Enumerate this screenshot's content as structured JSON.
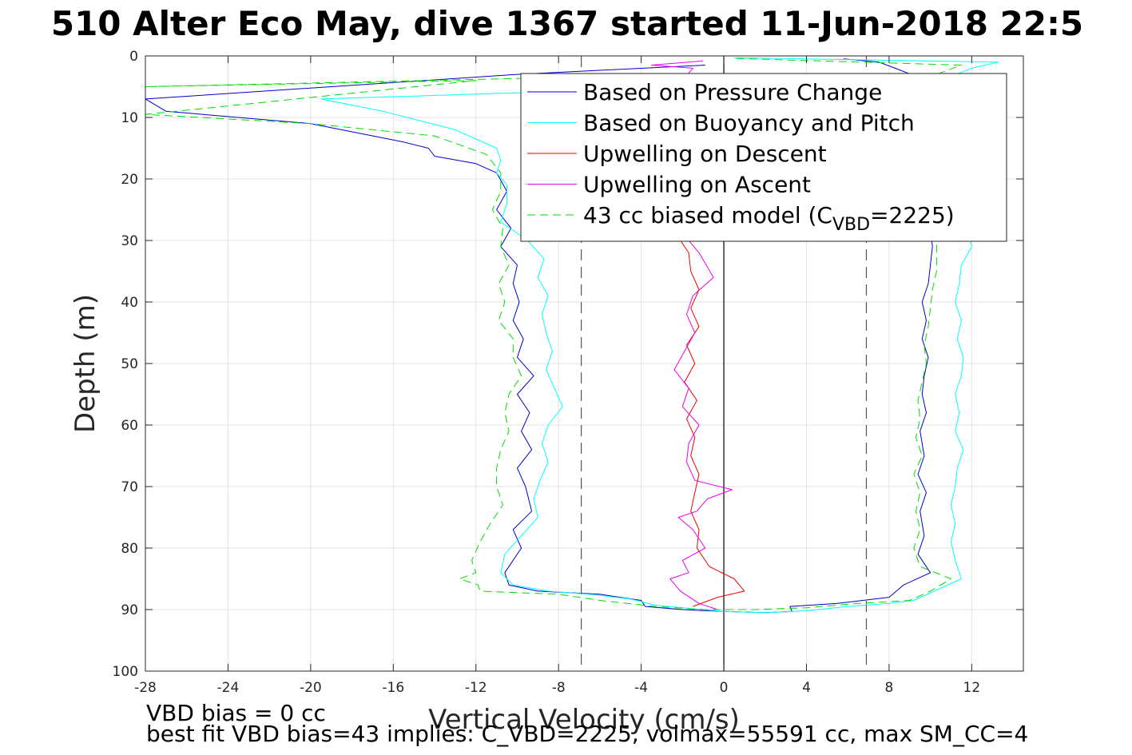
{
  "chart_data": {
    "type": "line",
    "title": "510 Alter Eco May, dive 1367 started 11-Jun-2018 22:5",
    "xlabel": "Vertical Velocity (cm/s)",
    "ylabel": "Depth (m)",
    "xlim": [
      -28,
      14.5
    ],
    "ylim": [
      0,
      100
    ],
    "y_reversed": true,
    "grid": true,
    "legend_position": "top-right",
    "xticks": [
      -28,
      -24,
      -20,
      -16,
      -12,
      -8,
      -4,
      0,
      4,
      8,
      12
    ],
    "yticks": [
      0,
      10,
      20,
      30,
      40,
      50,
      60,
      70,
      80,
      90,
      100
    ],
    "xtick_labels": [
      "-28",
      "-24",
      "-20",
      "-16",
      "-12",
      "-8",
      "-4",
      "0",
      "4",
      "8",
      "12"
    ],
    "ytick_labels": [
      "0",
      "10",
      "20",
      "30",
      "40",
      "50",
      "60",
      "70",
      "80",
      "90",
      "100"
    ],
    "reference_lines": [
      {
        "x": 0,
        "style": "solid",
        "color": "#000000"
      },
      {
        "x": -6.9,
        "style": "dashed",
        "color": "#555555"
      },
      {
        "x": 6.9,
        "style": "dashed",
        "color": "#555555"
      }
    ],
    "series": [
      {
        "name": "Based on Pressure Change",
        "color": "#0000cc",
        "dash": "solid",
        "descent": [
          [
            -0.9,
            1.5
          ],
          [
            -10,
            3
          ],
          [
            -28,
            7
          ],
          [
            -27,
            9
          ],
          [
            -20,
            11
          ],
          [
            -15.5,
            14
          ],
          [
            -14.3,
            15
          ],
          [
            -14,
            16.3
          ],
          [
            -12,
            17.5
          ],
          [
            -11,
            19
          ],
          [
            -10.5,
            22
          ],
          [
            -11,
            25
          ],
          [
            -10.3,
            28
          ],
          [
            -10.8,
            31
          ],
          [
            -10,
            34
          ],
          [
            -10.2,
            37
          ],
          [
            -9.9,
            40
          ],
          [
            -10.2,
            43
          ],
          [
            -9.7,
            46
          ],
          [
            -10,
            49
          ],
          [
            -9.2,
            52
          ],
          [
            -10,
            55
          ],
          [
            -9.4,
            58
          ],
          [
            -9.8,
            61
          ],
          [
            -9.3,
            64
          ],
          [
            -10,
            67
          ],
          [
            -9.6,
            70
          ],
          [
            -9.3,
            74
          ],
          [
            -10.2,
            77
          ],
          [
            -9.8,
            80
          ],
          [
            -10.6,
            84
          ],
          [
            -10.4,
            86
          ],
          [
            -9,
            87
          ],
          [
            -6,
            87.5
          ],
          [
            -4,
            88.5
          ],
          [
            -3.8,
            89.5
          ],
          [
            -2,
            90
          ],
          [
            0,
            90.3
          ],
          [
            2,
            90.5
          ],
          [
            3.3,
            90.3
          ],
          [
            3.2,
            89.5
          ],
          [
            5.5,
            89
          ],
          [
            8,
            88
          ],
          [
            8.7,
            86
          ],
          [
            10,
            84
          ],
          [
            9.4,
            81
          ],
          [
            9.7,
            78
          ],
          [
            9.5,
            74
          ],
          [
            9.8,
            71
          ],
          [
            9.4,
            68
          ],
          [
            9.7,
            65
          ],
          [
            9.5,
            61
          ],
          [
            9.8,
            58
          ],
          [
            9.6,
            55
          ],
          [
            9.7,
            52
          ],
          [
            9.9,
            49
          ],
          [
            9.6,
            46
          ],
          [
            9.8,
            43
          ],
          [
            9.6,
            40
          ],
          [
            9.9,
            37
          ],
          [
            10,
            34
          ],
          [
            10.1,
            31
          ],
          [
            10,
            28
          ],
          [
            10,
            25
          ],
          [
            10,
            22
          ],
          [
            10,
            19
          ],
          [
            10.2,
            16
          ],
          [
            10.3,
            13
          ],
          [
            10.5,
            10
          ],
          [
            10.2,
            7
          ],
          [
            9.8,
            4
          ],
          [
            8.3,
            2
          ],
          [
            7.5,
            1
          ],
          [
            5.8,
            0.5
          ]
        ]
      },
      {
        "name": "Based on Buoyancy and Pitch",
        "color": "#00ffff",
        "dash": "solid",
        "descent": [
          [
            -2,
            5.5
          ],
          [
            -10,
            6
          ],
          [
            -19.5,
            7
          ],
          [
            -16.5,
            9
          ],
          [
            -13,
            12
          ],
          [
            -11,
            15
          ],
          [
            -10.8,
            17
          ],
          [
            -11,
            19
          ],
          [
            -10.5,
            21
          ],
          [
            -10.5,
            24
          ],
          [
            -10.8,
            27
          ],
          [
            -9.5,
            30
          ],
          [
            -8.7,
            33
          ],
          [
            -9,
            36
          ],
          [
            -8.5,
            39
          ],
          [
            -8.8,
            42
          ],
          [
            -8.6,
            45
          ],
          [
            -8.3,
            48
          ],
          [
            -8.6,
            51
          ],
          [
            -8.2,
            54
          ],
          [
            -7.8,
            57
          ],
          [
            -8.5,
            60
          ],
          [
            -8.8,
            63
          ],
          [
            -8.5,
            66
          ],
          [
            -8.9,
            69
          ],
          [
            -9.2,
            72
          ],
          [
            -9,
            75
          ],
          [
            -9.8,
            78
          ],
          [
            -10.6,
            81
          ],
          [
            -10.8,
            84
          ],
          [
            -10.2,
            86
          ],
          [
            -8.5,
            87
          ],
          [
            -6.2,
            87.6
          ],
          [
            -4.5,
            88.3
          ],
          [
            -3.3,
            89.3
          ],
          [
            -1,
            90
          ],
          [
            0,
            90.3
          ],
          [
            2,
            90.5
          ],
          [
            4,
            90.2
          ],
          [
            6,
            89.5
          ],
          [
            8,
            89
          ],
          [
            9.2,
            88.5
          ],
          [
            11.5,
            85
          ],
          [
            11.2,
            82
          ],
          [
            11,
            79
          ],
          [
            11.2,
            76
          ],
          [
            11,
            73
          ],
          [
            11.2,
            70
          ],
          [
            11.3,
            67
          ],
          [
            11.6,
            64
          ],
          [
            11.2,
            61
          ],
          [
            11.4,
            58
          ],
          [
            11.2,
            55
          ],
          [
            11.5,
            52
          ],
          [
            11.6,
            49
          ],
          [
            11.3,
            46
          ],
          [
            11.5,
            43
          ],
          [
            11.2,
            40
          ],
          [
            11.4,
            37
          ],
          [
            11.5,
            34
          ],
          [
            12,
            31
          ],
          [
            11.8,
            28
          ],
          [
            11.5,
            25
          ],
          [
            11.4,
            22
          ],
          [
            11.6,
            19
          ],
          [
            11.5,
            16
          ],
          [
            11.3,
            13
          ],
          [
            11.7,
            10
          ],
          [
            10.8,
            7
          ],
          [
            10.5,
            4
          ],
          [
            12,
            2
          ],
          [
            13.3,
            1
          ],
          [
            0.5,
            0.3
          ]
        ]
      },
      {
        "name": "Upwelling on Descent",
        "color": "#ee0000",
        "dash": "solid",
        "descent": [
          [
            -1.5,
            7
          ],
          [
            -2.8,
            9
          ],
          [
            -2.5,
            11
          ],
          [
            -2.6,
            14
          ],
          [
            -2.2,
            17
          ],
          [
            -2.5,
            20
          ],
          [
            -2.3,
            23
          ],
          [
            -2,
            26
          ],
          [
            -2.3,
            29
          ],
          [
            -1.7,
            32
          ],
          [
            -1.6,
            35
          ],
          [
            -1.2,
            38
          ],
          [
            -1.6,
            41
          ],
          [
            -1.2,
            44
          ],
          [
            -1.8,
            47
          ],
          [
            -1.4,
            50
          ],
          [
            -1.9,
            53
          ],
          [
            -1.3,
            56
          ],
          [
            -1.8,
            59
          ],
          [
            -1.4,
            62
          ],
          [
            -1.6,
            65
          ],
          [
            -1.2,
            68
          ],
          [
            -1.4,
            71
          ],
          [
            -1.6,
            74
          ],
          [
            -1.2,
            77
          ],
          [
            -1.3,
            80
          ],
          [
            -0.7,
            83
          ],
          [
            0.5,
            85
          ],
          [
            1,
            87
          ],
          [
            -0.3,
            88
          ],
          [
            -1.5,
            89.5
          ]
        ]
      },
      {
        "name": "Upwelling on Ascent",
        "color": "#ee00ee",
        "dash": "solid",
        "descent": [
          [
            -1,
            0.8
          ],
          [
            -3.5,
            1.5
          ],
          [
            -1.5,
            2
          ],
          [
            -2,
            4
          ],
          [
            -1.8,
            7
          ],
          [
            -2.2,
            10
          ],
          [
            -1.6,
            13
          ],
          [
            -2.1,
            16
          ],
          [
            -1.9,
            19
          ],
          [
            -2.3,
            22
          ],
          [
            -1.8,
            25
          ],
          [
            -2.2,
            28
          ],
          [
            -1.2,
            32
          ],
          [
            -0.5,
            36
          ],
          [
            -1.5,
            39
          ],
          [
            -1.8,
            42
          ],
          [
            -1.4,
            45
          ],
          [
            -1.9,
            48
          ],
          [
            -2.4,
            51
          ],
          [
            -1.7,
            54
          ],
          [
            -2,
            57
          ],
          [
            -1.2,
            60
          ],
          [
            -1.7,
            63
          ],
          [
            -1.8,
            66
          ],
          [
            -1.4,
            69
          ],
          [
            0.4,
            70.5
          ],
          [
            -0.8,
            72
          ],
          [
            -1.3,
            74
          ],
          [
            -2.2,
            75
          ],
          [
            -1.5,
            77
          ],
          [
            -0.9,
            80
          ],
          [
            -2,
            82
          ],
          [
            -1.7,
            84
          ],
          [
            -2.6,
            85
          ],
          [
            -2.1,
            87
          ],
          [
            -1.2,
            89
          ],
          [
            -0.3,
            90
          ]
        ]
      },
      {
        "name": "43 cc biased model (C_VBD=2225)",
        "legend_prefix": "43 cc biased model (C",
        "legend_subscript": "VBD",
        "legend_suffix": "=2225)",
        "color": "#00dd00",
        "dash": "dashed",
        "descent": [
          [
            -1,
            3
          ],
          [
            -28,
            5
          ],
          [
            -12,
            4
          ],
          [
            -28,
            9.5
          ],
          [
            -20,
            11
          ],
          [
            -14,
            13
          ],
          [
            -11.5,
            16
          ],
          [
            -10.8,
            19
          ],
          [
            -10.8,
            22
          ],
          [
            -11.2,
            25
          ],
          [
            -10.7,
            28
          ],
          [
            -10.8,
            31
          ],
          [
            -10.4,
            34
          ],
          [
            -10.9,
            37
          ],
          [
            -10.6,
            40
          ],
          [
            -10.9,
            43
          ],
          [
            -10.2,
            46
          ],
          [
            -10.2,
            49
          ],
          [
            -9.8,
            52
          ],
          [
            -10.4,
            55
          ],
          [
            -10.6,
            58
          ],
          [
            -10.4,
            61
          ],
          [
            -10.8,
            64
          ],
          [
            -11,
            67
          ],
          [
            -11,
            70
          ],
          [
            -10.7,
            73
          ],
          [
            -11.3,
            76
          ],
          [
            -11.8,
            79
          ],
          [
            -12.2,
            82
          ],
          [
            -12,
            84
          ],
          [
            -12.8,
            85
          ],
          [
            -11.9,
            86
          ],
          [
            -11.8,
            87
          ],
          [
            -8,
            87.5
          ],
          [
            -6,
            88.5
          ],
          [
            -3.3,
            89.5
          ],
          [
            -1,
            90
          ],
          [
            1.5,
            90
          ],
          [
            4,
            89.7
          ],
          [
            6.5,
            89
          ],
          [
            9,
            88.5
          ],
          [
            10,
            87
          ],
          [
            11,
            85
          ],
          [
            9.5,
            83
          ],
          [
            9.2,
            80
          ],
          [
            9.5,
            77
          ],
          [
            9.3,
            74
          ],
          [
            9.5,
            71
          ],
          [
            9.2,
            68
          ],
          [
            9.6,
            65
          ],
          [
            9.3,
            62
          ],
          [
            9.5,
            59
          ],
          [
            9.4,
            56
          ],
          [
            9.6,
            53
          ],
          [
            9.8,
            50
          ],
          [
            9.7,
            47
          ],
          [
            9.9,
            44
          ],
          [
            10,
            41
          ],
          [
            10.1,
            38
          ],
          [
            10.3,
            35
          ],
          [
            10.3,
            32
          ],
          [
            10.3,
            29
          ],
          [
            10.3,
            26
          ],
          [
            10.3,
            23
          ],
          [
            10.3,
            20
          ],
          [
            10.3,
            17
          ],
          [
            10.3,
            14
          ],
          [
            10.3,
            11
          ],
          [
            10.3,
            8
          ],
          [
            10.3,
            5
          ],
          [
            10.3,
            3
          ],
          [
            11.5,
            1.5
          ],
          [
            0.5,
            0.4
          ]
        ]
      }
    ],
    "footer_lines": [
      "VBD bias = 0 cc",
      "best fit VBD bias=43 implies: C_VBD=2225, volmax=55591 cc, max SM_CC=4"
    ]
  }
}
